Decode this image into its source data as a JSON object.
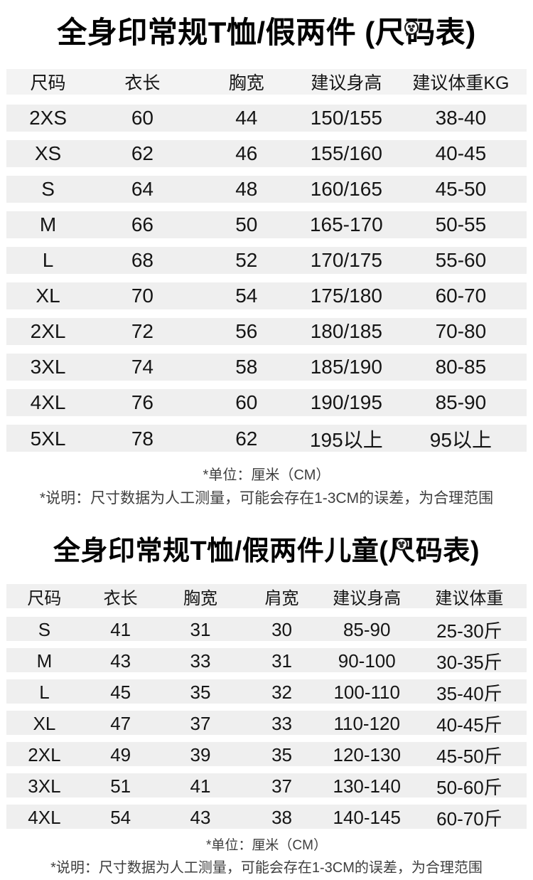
{
  "colors": {
    "stripe": "#efefef",
    "text": "#151515",
    "title_text": "#000000",
    "note_text": "#3e3e3e",
    "background": "#ffffff"
  },
  "icons": {
    "title_badge": "round-sticker-icon"
  },
  "notes": {
    "unit": "*单位：厘米（CM）",
    "desc": "*说明：尺寸数据为人工测量，可能会存在1-3CM的误差，为合理范围"
  },
  "adult_table": {
    "title": "全身印常规T恤/假两件 (尺码表)",
    "headers": [
      "尺码",
      "衣长",
      "胸宽",
      "建议身高",
      "建议体重KG"
    ],
    "rows": [
      [
        "2XS",
        "60",
        "44",
        "150/155",
        "38-40"
      ],
      [
        "XS",
        "62",
        "46",
        "155/160",
        "40-45"
      ],
      [
        "S",
        "64",
        "48",
        "160/165",
        "45-50"
      ],
      [
        "M",
        "66",
        "50",
        "165-170",
        "50-55"
      ],
      [
        "L",
        "68",
        "52",
        "170/175",
        "55-60"
      ],
      [
        "XL",
        "70",
        "54",
        "175/180",
        "60-70"
      ],
      [
        "2XL",
        "72",
        "56",
        "180/185",
        "70-80"
      ],
      [
        "3XL",
        "74",
        "58",
        "185/190",
        "80-85"
      ],
      [
        "4XL",
        "76",
        "60",
        "190/195",
        "85-90"
      ],
      [
        "5XL",
        "78",
        "62",
        "195以上",
        "95以上"
      ]
    ]
  },
  "kids_table": {
    "title": "全身印常规T恤/假两件儿童(尺码表)",
    "headers": [
      "尺码",
      "衣长",
      "胸宽",
      "肩宽",
      "建议身高",
      "建议体重"
    ],
    "rows": [
      [
        "S",
        "41",
        "31",
        "30",
        "85-90",
        "25-30斤"
      ],
      [
        "M",
        "43",
        "33",
        "31",
        "90-100",
        "30-35斤"
      ],
      [
        "L",
        "45",
        "35",
        "32",
        "100-110",
        "35-40斤"
      ],
      [
        "XL",
        "47",
        "37",
        "33",
        "110-120",
        "40-45斤"
      ],
      [
        "2XL",
        "49",
        "39",
        "35",
        "120-130",
        "45-50斤"
      ],
      [
        "3XL",
        "51",
        "41",
        "37",
        "130-140",
        "50-60斤"
      ],
      [
        "4XL",
        "54",
        "43",
        "38",
        "140-145",
        "60-70斤"
      ]
    ]
  }
}
